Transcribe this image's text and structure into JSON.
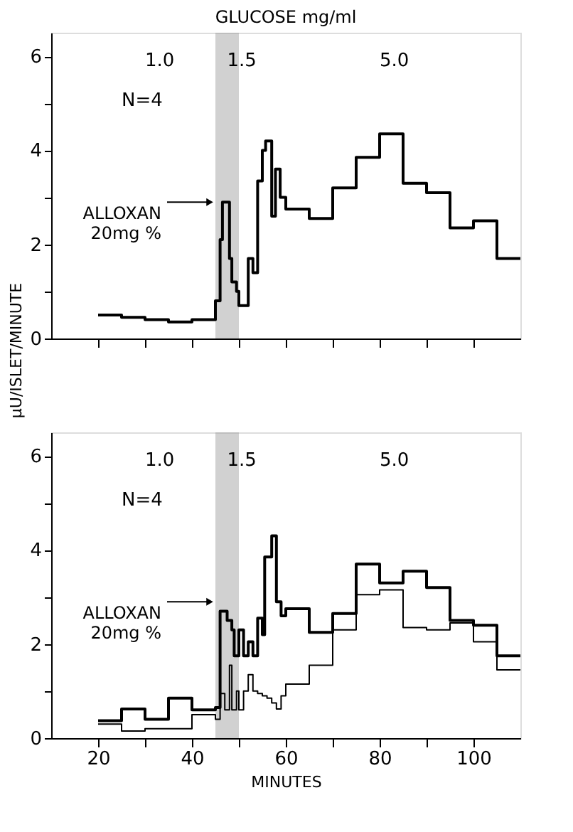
{
  "chart_data": [
    {
      "type": "step",
      "title": "GLUCOSE mg/ml",
      "ylabel": "μU/ISLET/MINUTE",
      "x": [
        20,
        25,
        30,
        35,
        40,
        45,
        46,
        46.5,
        48,
        48.5,
        49.5,
        50,
        52,
        53,
        54,
        55,
        55.7,
        57,
        57.8,
        58.8,
        60,
        65,
        70,
        75,
        80,
        85,
        90,
        95,
        100,
        105,
        110
      ],
      "series": [
        {
          "color": "#000000",
          "values": [
            0.5,
            0.45,
            0.4,
            0.35,
            0.4,
            0.8,
            2.1,
            2.9,
            1.7,
            1.2,
            1.0,
            0.7,
            1.7,
            1.4,
            3.35,
            4.0,
            4.2,
            2.6,
            3.6,
            3.0,
            2.75,
            2.55,
            3.2,
            3.85,
            4.35,
            3.3,
            3.1,
            2.35,
            2.5,
            1.7,
            1.7
          ]
        }
      ],
      "xlim": [
        10,
        110
      ],
      "xticks": [
        20,
        {
          "value": 30,
          "label": null
        },
        40,
        {
          "value": 50,
          "label": null
        },
        60,
        {
          "value": 70,
          "label": null
        },
        80,
        {
          "value": 90,
          "label": null
        },
        100
      ],
      "ylim": [
        0,
        6.5
      ],
      "yticks": [
        0,
        {
          "value": 1,
          "label": null
        },
        2,
        {
          "value": 3,
          "label": null
        },
        4,
        {
          "value": 5,
          "label": null
        },
        6
      ],
      "bands": [
        {
          "axis": "x",
          "from": 45,
          "to": 50,
          "color": "#9a9a9a"
        }
      ],
      "annotations": [
        "1.0",
        "1.5",
        "5.0",
        "N=4",
        {
          "text": "ALLOXAN\n20mg %",
          "x": 45,
          "y": 2.9
        }
      ],
      "tick_labels": "y",
      "grid": false,
      "legend": false
    },
    {
      "type": "step",
      "xlabel": "MINUTES",
      "x": [
        20,
        25,
        30,
        35,
        40,
        45,
        46,
        47,
        47.5,
        48,
        48.5,
        49,
        49.5,
        50,
        51,
        52,
        53,
        54,
        55,
        55.5,
        56,
        57,
        58,
        59,
        60,
        65,
        70,
        75,
        80,
        85,
        90,
        95,
        100,
        105,
        110
      ],
      "series": [
        {
          "color": "#000000",
          "values": [
            0.37,
            0.62,
            0.4,
            0.85,
            0.6,
            0.65,
            2.7,
            2.7,
            2.5,
            2.5,
            2.3,
            1.75,
            1.75,
            2.3,
            1.75,
            2.05,
            1.75,
            2.55,
            2.2,
            3.85,
            3.85,
            4.3,
            2.9,
            2.6,
            2.75,
            2.25,
            2.65,
            3.7,
            3.3,
            3.55,
            3.2,
            2.5,
            2.4,
            1.75,
            1.75
          ]
        },
        {
          "color": "#000000",
          "values": [
            0.3,
            0.15,
            0.2,
            0.2,
            0.5,
            0.4,
            0.95,
            0.6,
            0.6,
            1.55,
            0.6,
            0.6,
            1.0,
            0.6,
            1.0,
            1.35,
            1.0,
            0.95,
            0.9,
            0.9,
            0.85,
            0.75,
            0.62,
            0.9,
            1.15,
            1.55,
            2.3,
            3.05,
            3.15,
            2.35,
            2.3,
            2.45,
            2.05,
            1.45,
            1.45
          ]
        }
      ],
      "xlim": [
        10,
        110
      ],
      "xticks": [
        20,
        {
          "value": 30,
          "label": null
        },
        40,
        {
          "value": 50,
          "label": null
        },
        60,
        {
          "value": 70,
          "label": null
        },
        80,
        {
          "value": 90,
          "label": null
        },
        100
      ],
      "ylim": [
        0,
        6.5
      ],
      "yticks": [
        0,
        {
          "value": 1,
          "label": null
        },
        2,
        {
          "value": 3,
          "label": null
        },
        4,
        {
          "value": 5,
          "label": null
        },
        6
      ],
      "bands": [
        {
          "axis": "x",
          "from": 45,
          "to": 50,
          "color": "#9a9a9a"
        }
      ],
      "annotations": [
        "1.0",
        "1.5",
        "5.0",
        "N=4",
        {
          "text": "ALLOXAN\n20mg %",
          "x": 45,
          "y": 2.9
        }
      ],
      "grid": false,
      "legend": false
    }
  ]
}
